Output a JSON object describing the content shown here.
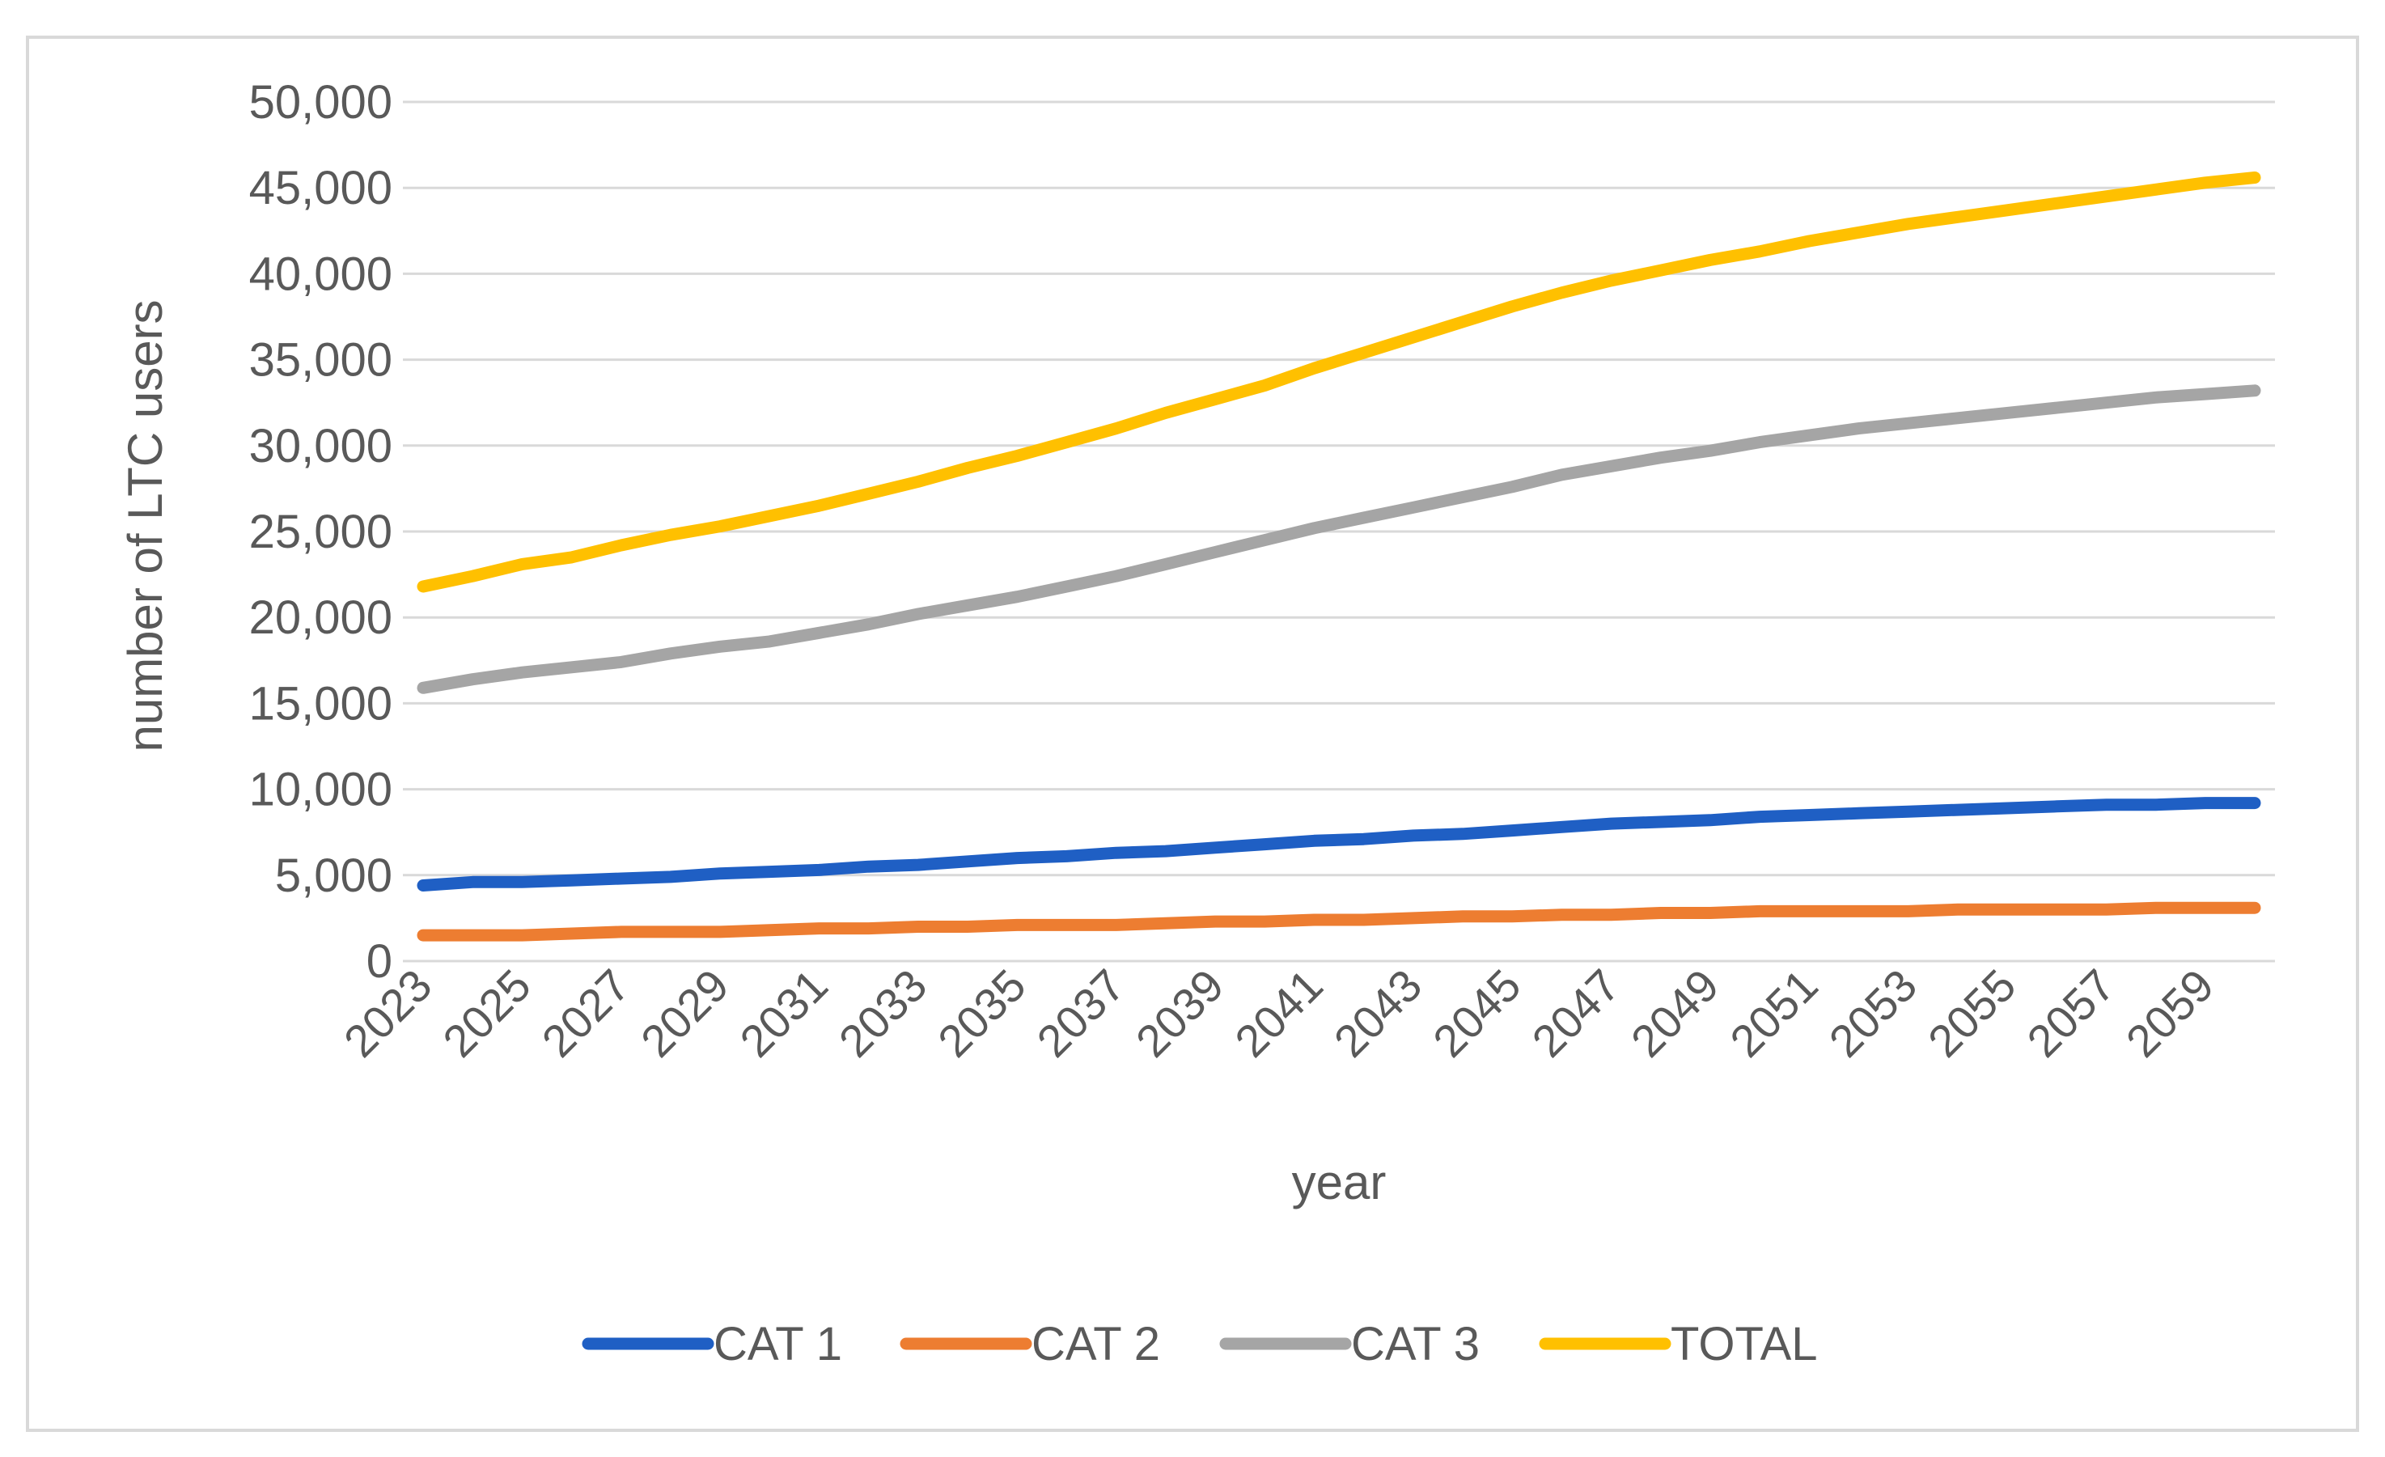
{
  "chart_data": {
    "type": "line",
    "title": "",
    "xlabel": "year",
    "ylabel": "number of LTC users",
    "ylim": [
      0,
      50000
    ],
    "y_ticks": [
      0,
      5000,
      10000,
      15000,
      20000,
      25000,
      30000,
      35000,
      40000,
      45000,
      50000
    ],
    "y_tick_labels": [
      "0",
      "5,000",
      "10,000",
      "15,000",
      "20,000",
      "25,000",
      "30,000",
      "35,000",
      "40,000",
      "45,000",
      "50,000"
    ],
    "x": [
      2023,
      2024,
      2025,
      2026,
      2027,
      2028,
      2029,
      2030,
      2031,
      2032,
      2033,
      2034,
      2035,
      2036,
      2037,
      2038,
      2039,
      2040,
      2041,
      2042,
      2043,
      2044,
      2045,
      2046,
      2047,
      2048,
      2049,
      2050,
      2051,
      2052,
      2053,
      2054,
      2055,
      2056,
      2057,
      2058,
      2059,
      2060
    ],
    "x_tick_labels": [
      "2023",
      "2025",
      "2027",
      "2029",
      "2031",
      "2033",
      "2035",
      "2037",
      "2039",
      "2041",
      "2043",
      "2045",
      "2047",
      "2049",
      "2051",
      "2053",
      "2055",
      "2057",
      "2059"
    ],
    "grid": true,
    "legend_position": "bottom",
    "series": [
      {
        "name": "CAT 1",
        "color": "#1f5fc4",
        "values": [
          4400,
          4600,
          4600,
          4700,
          4800,
          4900,
          5100,
          5200,
          5300,
          5500,
          5600,
          5800,
          6000,
          6100,
          6300,
          6400,
          6600,
          6800,
          7000,
          7100,
          7300,
          7400,
          7600,
          7800,
          8000,
          8100,
          8200,
          8400,
          8500,
          8600,
          8700,
          8800,
          8900,
          9000,
          9100,
          9100,
          9200,
          9200
        ]
      },
      {
        "name": "CAT 2",
        "color": "#ed7d31",
        "values": [
          1500,
          1500,
          1500,
          1600,
          1700,
          1700,
          1700,
          1800,
          1900,
          1900,
          2000,
          2000,
          2100,
          2100,
          2100,
          2200,
          2300,
          2300,
          2400,
          2400,
          2500,
          2600,
          2600,
          2700,
          2700,
          2800,
          2800,
          2900,
          2900,
          2900,
          2900,
          3000,
          3000,
          3000,
          3000,
          3100,
          3100,
          3100
        ]
      },
      {
        "name": "CAT 3",
        "color": "#a5a5a5",
        "values": [
          15900,
          16400,
          16800,
          17100,
          17400,
          17900,
          18300,
          18600,
          19100,
          19600,
          20200,
          20700,
          21200,
          21800,
          22400,
          23100,
          23800,
          24500,
          25200,
          25800,
          26400,
          27000,
          27600,
          28300,
          28800,
          29300,
          29700,
          30200,
          30600,
          31000,
          31300,
          31600,
          31900,
          32200,
          32500,
          32800,
          33000,
          33200
        ]
      },
      {
        "name": "TOTAL",
        "color": "#ffc000",
        "values": [
          21800,
          22400,
          23100,
          23500,
          24200,
          24800,
          25300,
          25900,
          26500,
          27200,
          27900,
          28700,
          29400,
          30200,
          31000,
          31900,
          32700,
          33500,
          34500,
          35400,
          36300,
          37200,
          38100,
          38900,
          39600,
          40200,
          40800,
          41300,
          41900,
          42400,
          42900,
          43300,
          43700,
          44100,
          44500,
          44900,
          45300,
          45600
        ]
      }
    ]
  }
}
